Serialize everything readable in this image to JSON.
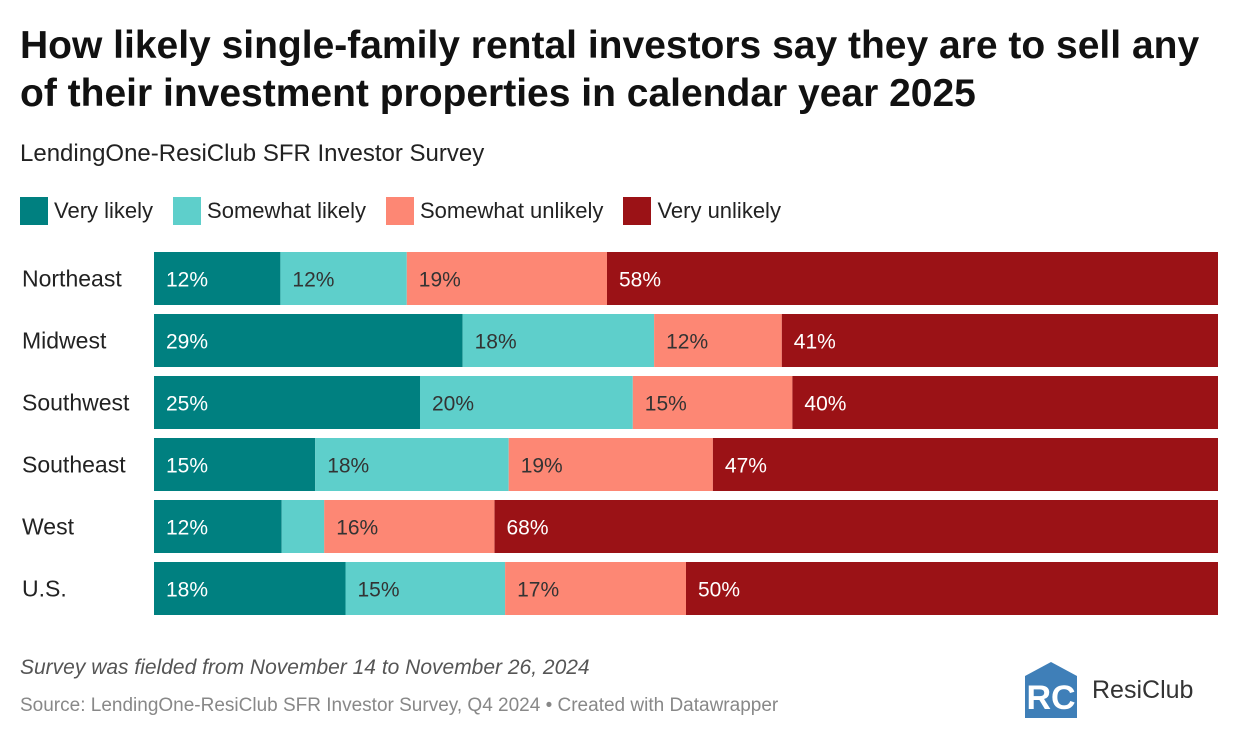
{
  "title": "How likely single-family rental investors say they are to sell any of their investment properties in calendar year 2025",
  "subtitle": "LendingOne-ResiClub SFR Investor Survey",
  "note": "Survey was fielded from November 14 to November 26, 2024",
  "source": "Source: LendingOne-ResiClub SFR Investor Survey, Q4 2024 • Created with Datawrapper",
  "logo": {
    "text": "ResiClub",
    "mark": "RC"
  },
  "chart_data": {
    "type": "bar",
    "orientation": "horizontal-stacked",
    "categories": [
      "Northeast",
      "Midwest",
      "Southwest",
      "Southeast",
      "West",
      "U.S."
    ],
    "value_labels_hidden": [
      [],
      [],
      [],
      [],
      [
        1
      ],
      []
    ],
    "series": [
      {
        "name": "Very likely",
        "color": "#008080",
        "values": [
          12,
          29,
          25,
          15,
          12,
          18
        ]
      },
      {
        "name": "Somewhat likely",
        "color": "#5ecfcb",
        "values": [
          12,
          18,
          20,
          18,
          4,
          15
        ]
      },
      {
        "name": "Somewhat unlikely",
        "color": "#fd8774",
        "values": [
          19,
          12,
          15,
          19,
          16,
          17
        ]
      },
      {
        "name": "Very unlikely",
        "color": "#9b1216",
        "values": [
          58,
          41,
          40,
          47,
          68,
          50
        ]
      }
    ],
    "value_suffix": "%",
    "legend": "top-left"
  }
}
